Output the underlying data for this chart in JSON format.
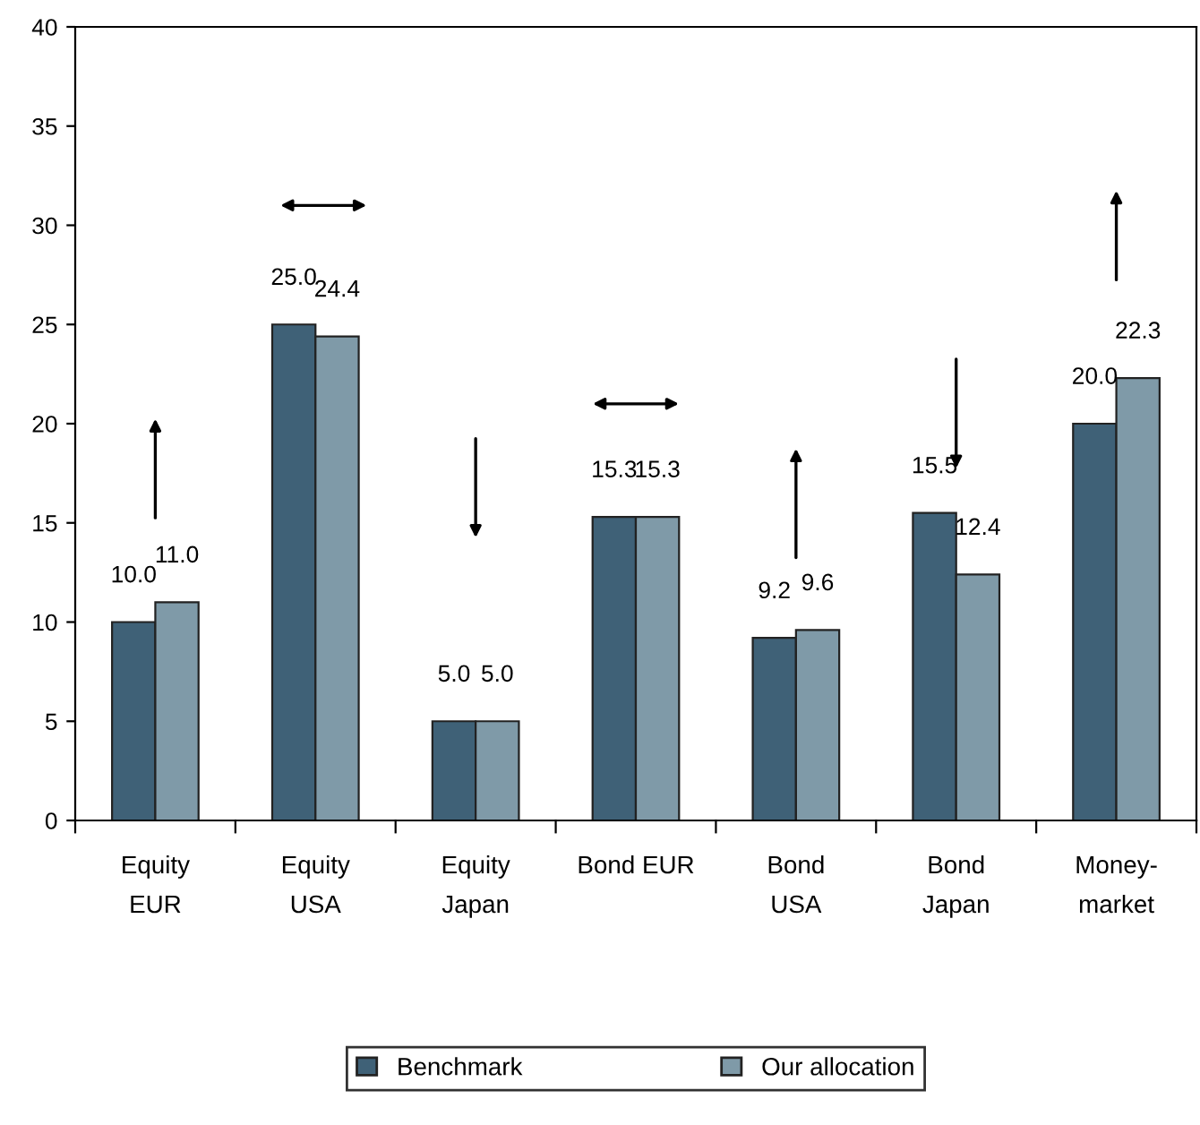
{
  "chart_data": {
    "type": "bar",
    "categories": [
      "Equity\nEUR",
      "Equity\nUSA",
      "Equity\nJapan",
      "Bond EUR",
      "Bond\nUSA",
      "Bond\nJapan",
      "Money-\nmarket"
    ],
    "series": [
      {
        "name": "Benchmark",
        "color": "#3f6177",
        "values": [
          10.0,
          25.0,
          5.0,
          15.3,
          9.2,
          15.5,
          20.0
        ],
        "value_labels": [
          "10.0",
          "25.0",
          "5.0",
          "15.3",
          "9.2",
          "15.5",
          "20.0"
        ]
      },
      {
        "name": "Our allocation",
        "color": "#7f9aa8",
        "values": [
          11.0,
          24.4,
          5.0,
          15.3,
          9.6,
          12.4,
          22.3
        ],
        "value_labels": [
          "11.0",
          "24.4",
          "5.0",
          "15.3",
          "9.6",
          "12.4",
          "22.3"
        ]
      }
    ],
    "ylim": [
      0,
      40
    ],
    "yticks": [
      0,
      5,
      10,
      15,
      20,
      25,
      30,
      35,
      40
    ],
    "grid": false,
    "legend": "bottom"
  }
}
